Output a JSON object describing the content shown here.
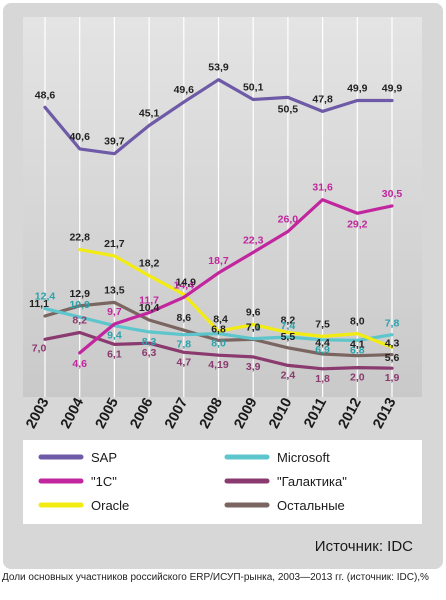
{
  "chart_data": {
    "type": "line",
    "x": [
      "2003",
      "2004",
      "2005",
      "2006",
      "2007",
      "2008",
      "2009",
      "2010",
      "2011",
      "2012",
      "2013"
    ],
    "ylim": [
      0,
      58
    ],
    "grid": "vertical",
    "legend_position": "bottom",
    "series": [
      {
        "name": "SAP",
        "color": "#6e5aa6",
        "values": [
          48.6,
          40.6,
          39.7,
          45.1,
          49.6,
          53.9,
          50.1,
          50.5,
          47.8,
          49.9,
          49.9
        ],
        "labels": [
          "48,6",
          "40,6",
          "39,7",
          "45,1",
          "49,6",
          "53,9",
          "50,1",
          "50,5",
          "47,8",
          "49,9",
          "49,9"
        ],
        "label_color": "#222222"
      },
      {
        "name": "\"1С\"",
        "color": "#c2269e",
        "values": [
          null,
          4.6,
          9.7,
          11.7,
          14.4,
          18.7,
          22.3,
          26.0,
          31.6,
          29.2,
          30.5
        ],
        "labels": [
          "",
          "4,6",
          "9,7",
          "11,7",
          "14,4",
          "18,7",
          "22,3",
          "26,0",
          "31,6",
          "29,2",
          "30,5"
        ],
        "label_color": "#c2269e"
      },
      {
        "name": "Oracle",
        "color": "#f2ec12",
        "values": [
          null,
          22.8,
          21.7,
          18.2,
          14.9,
          8.4,
          9.6,
          8.2,
          7.5,
          8.0,
          5.6
        ],
        "labels": [
          "",
          "22,8",
          "21,7",
          "18,2",
          "14,9",
          "8,4",
          "9,6",
          "8,2",
          "7,5",
          "8,0",
          "5,6"
        ],
        "label_color": "#222222"
      },
      {
        "name": "Microsoft",
        "color": "#5cc6cc",
        "values": [
          12.4,
          10.9,
          9.4,
          8.3,
          7.8,
          8.0,
          7.1,
          7.4,
          6.9,
          6.8,
          7.8
        ],
        "labels": [
          "12,4",
          "10,9",
          "9,4",
          "8,3",
          "7,8",
          "8,0",
          "7,1",
          "7,4",
          "6,9",
          "6,8",
          "7,8"
        ],
        "label_color": "#2aa3ad"
      },
      {
        "name": "\"Галактика\"",
        "color": "#8a3a6e",
        "values": [
          7.0,
          8.2,
          6.1,
          6.3,
          4.7,
          4.19,
          3.9,
          2.4,
          1.8,
          2.0,
          1.9
        ],
        "labels": [
          "7,0",
          "8,2",
          "6,1",
          "6,3",
          "4,7",
          "4,19",
          "3,9",
          "2,4",
          "1,8",
          "2,0",
          "1,9"
        ],
        "label_color": "#8a3a6e"
      },
      {
        "name": "Остальные",
        "color": "#7a6560",
        "values": [
          11.1,
          12.9,
          13.5,
          10.4,
          8.6,
          6.8,
          7.0,
          5.5,
          4.4,
          4.1,
          4.3
        ],
        "labels": [
          "11,1",
          "12,9",
          "13,5",
          "10,4",
          "8,6",
          "6,8",
          "7,0",
          "5,5",
          "4,4",
          "4,1",
          "4,3"
        ],
        "label_color": "#222222"
      }
    ],
    "source": "Источник: IDC"
  },
  "caption": "Доли основных участников российского ERP/ИСУП-рынка, 2003—2013 гг. (источник: IDC),%"
}
